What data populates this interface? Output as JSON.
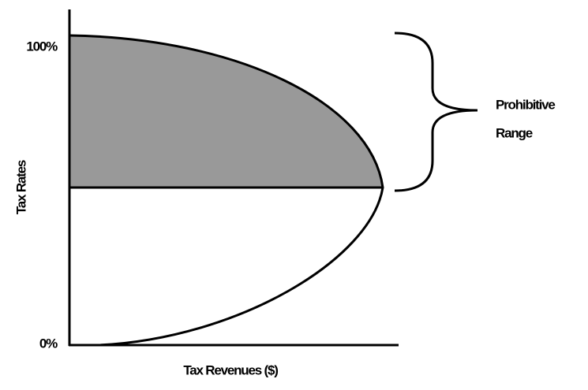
{
  "y_axis": {
    "title": "Tax Rates",
    "top_label": "100%",
    "bottom_label": "0%"
  },
  "x_axis": {
    "title": "Tax Revenues ($)"
  },
  "annotation": {
    "lines": [
      "Prohibitive",
      "Range"
    ]
  }
}
